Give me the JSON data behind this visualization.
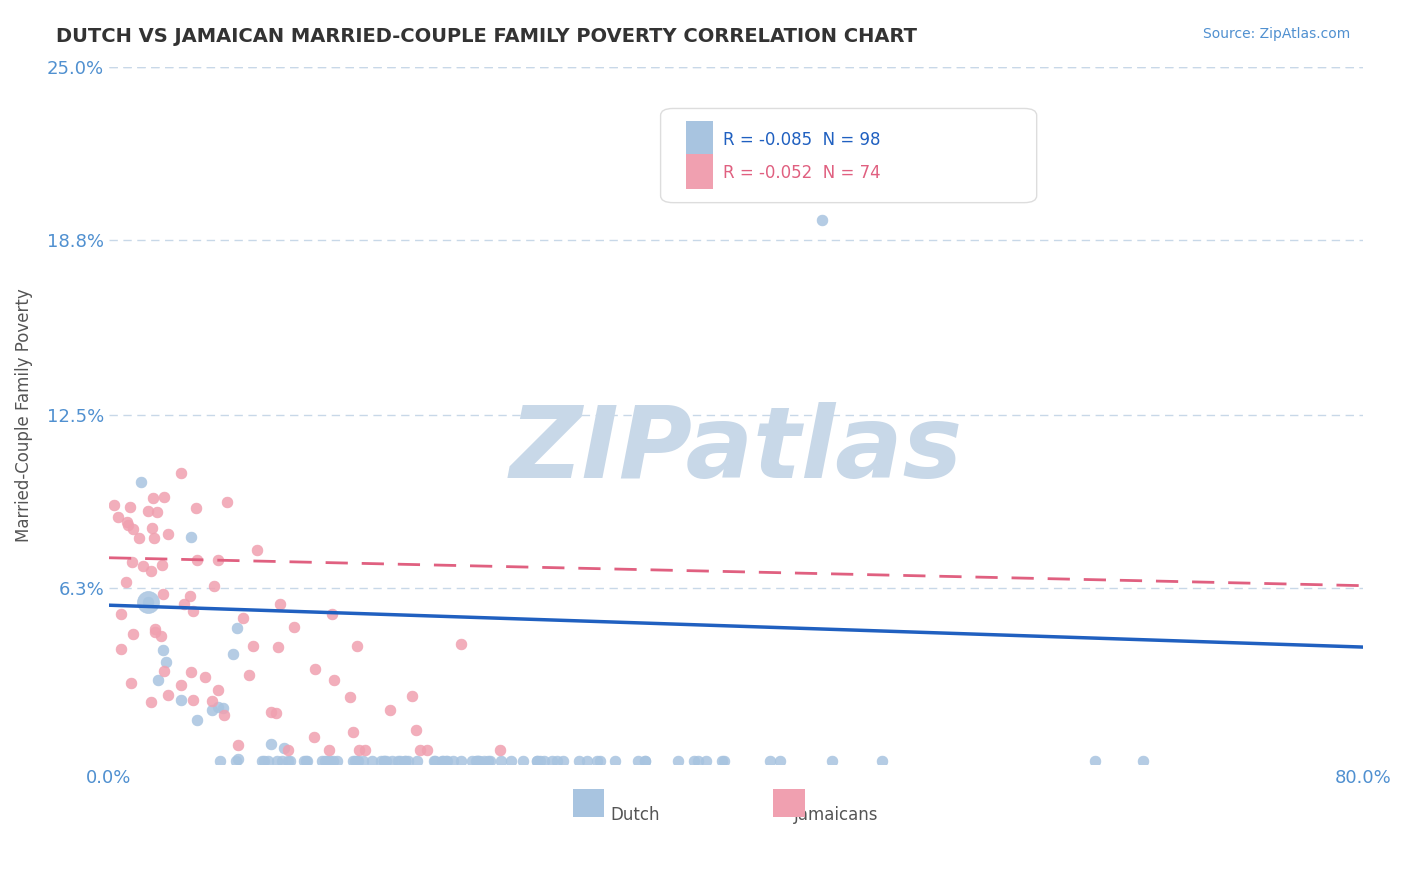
{
  "title": "DUTCH VS JAMAICAN MARRIED-COUPLE FAMILY POVERTY CORRELATION CHART",
  "source": "Source: ZipAtlas.com",
  "xlabel": "",
  "ylabel": "Married-Couple Family Poverty",
  "xlim": [
    0.0,
    0.8
  ],
  "ylim": [
    0.0,
    0.25
  ],
  "yticks": [
    0.0,
    0.063,
    0.125,
    0.188,
    0.25
  ],
  "ytick_labels": [
    "",
    "6.3%",
    "12.5%",
    "18.8%",
    "25.0%"
  ],
  "xticks": [
    0.0,
    0.8
  ],
  "xtick_labels": [
    "0.0%",
    "80.0%"
  ],
  "dutch_R": -0.085,
  "dutch_N": 98,
  "jamaican_R": -0.052,
  "jamaican_N": 74,
  "dutch_color": "#a8c4e0",
  "jamaican_color": "#f0a0b0",
  "dutch_line_color": "#2060c0",
  "jamaican_line_color": "#e06080",
  "background_color": "#ffffff",
  "grid_color": "#c8d8e8",
  "title_color": "#333333",
  "axis_label_color": "#555555",
  "tick_label_color": "#5090d0",
  "watermark_color": "#c8d8e8",
  "legend_dutch_label": "Dutch",
  "legend_jamaican_label": "Jamaicans",
  "dutch_seed": 42,
  "jamaican_seed": 99
}
